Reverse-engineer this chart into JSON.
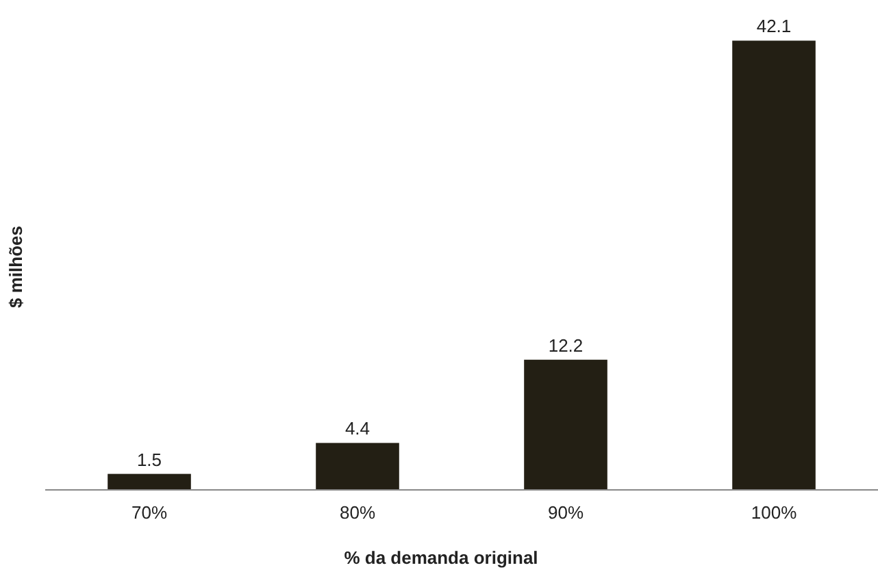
{
  "chart_data": {
    "type": "bar",
    "xlabel": "% da demanda original",
    "ylabel": "$ milhões",
    "categories": [
      "70%",
      "80%",
      "90%",
      "100%"
    ],
    "values": [
      1.5,
      4.4,
      12.2,
      42.1
    ],
    "color": "#231f14",
    "data_labels": true,
    "tick_labels": "x"
  }
}
